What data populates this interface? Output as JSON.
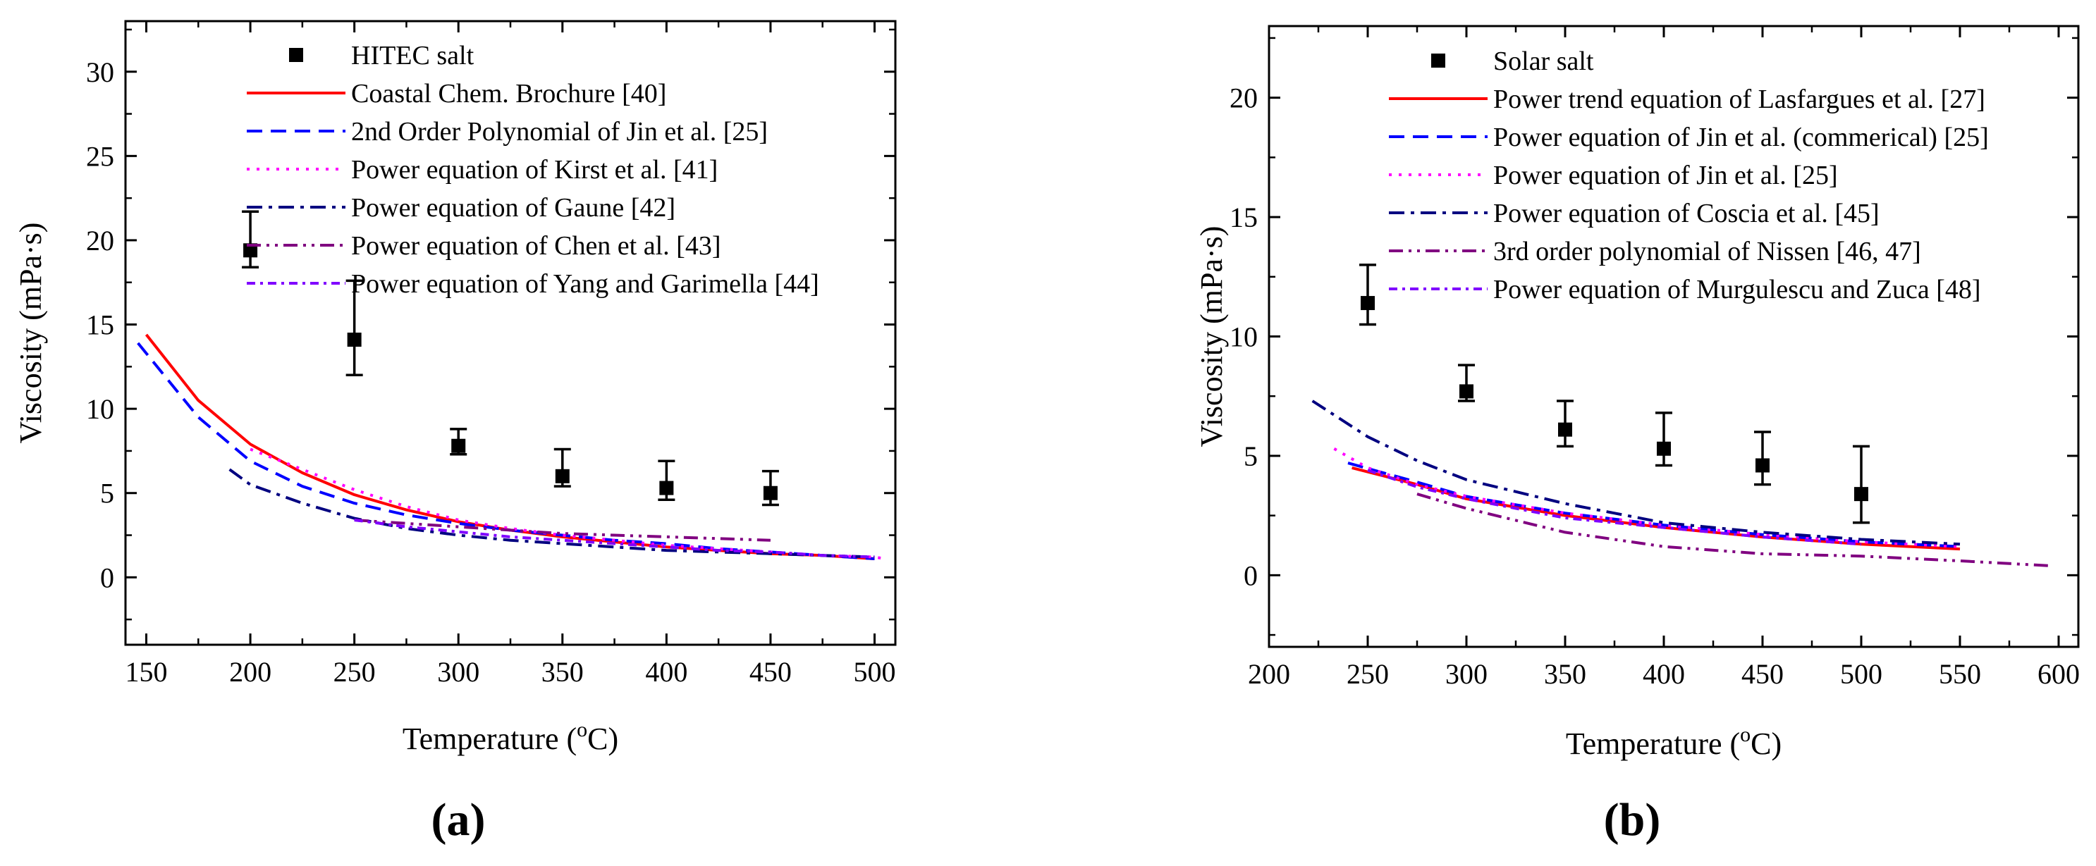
{
  "chart_data": [
    {
      "panel_label": "(a)",
      "type": "line",
      "xlabel": "Temperature (",
      "xlabel_sup": "o",
      "xlabel_suffix": "C)",
      "ylabel": "Viscosity (mPa·s)",
      "xlim": [
        140,
        510
      ],
      "ylim": [
        -4,
        33
      ],
      "xticks": [
        150,
        200,
        250,
        300,
        350,
        400,
        450,
        500
      ],
      "yticks": [
        0,
        5,
        10,
        15,
        20,
        25,
        30
      ],
      "legend_position": "top-center",
      "series": [
        {
          "name": "HITEC salt",
          "kind": "scatter",
          "color": "#000000",
          "x": [
            200,
            250,
            300,
            350,
            400,
            450
          ],
          "y": [
            19.4,
            14.1,
            7.8,
            6.0,
            5.3,
            5.0
          ],
          "err_low": [
            1.0,
            2.1,
            0.5,
            0.6,
            0.7,
            0.7
          ],
          "err_high": [
            2.3,
            3.5,
            1.0,
            1.6,
            1.6,
            1.3
          ]
        },
        {
          "name": "Coastal Chem. Brochure [40]",
          "kind": "line",
          "dash": "solid",
          "color": "#ff0000",
          "x": [
            150,
            175,
            200,
            225,
            250,
            275,
            300,
            325,
            350,
            375,
            400,
            425,
            450,
            475,
            500
          ],
          "y": [
            14.4,
            10.5,
            7.9,
            6.2,
            4.9,
            4.0,
            3.3,
            2.8,
            2.4,
            2.1,
            1.8,
            1.6,
            1.4,
            1.3,
            1.1
          ]
        },
        {
          "name": "2nd Order Polynomial of Jin et al. [25]",
          "kind": "line",
          "dash": "dash",
          "color": "#0000ff",
          "x": [
            146,
            175,
            200,
            225,
            250,
            275,
            300,
            325,
            350,
            375,
            400,
            425,
            450,
            475,
            500
          ],
          "y": [
            13.9,
            9.5,
            6.9,
            5.4,
            4.4,
            3.7,
            3.2,
            2.8,
            2.5,
            2.2,
            2.0,
            1.7,
            1.5,
            1.3,
            1.1
          ]
        },
        {
          "name": "Power equation of Kirst et al. [41]",
          "kind": "line",
          "dash": "dot",
          "color": "#ff00ff",
          "x": [
            200,
            225,
            250,
            275,
            300,
            325,
            350,
            375,
            400,
            425,
            450,
            475,
            500,
            505
          ],
          "y": [
            7.6,
            6.4,
            5.2,
            4.2,
            3.4,
            2.9,
            2.5,
            2.2,
            1.9,
            1.7,
            1.5,
            1.3,
            1.2,
            1.1
          ]
        },
        {
          "name": "Power equation of Gaune [42]",
          "kind": "line",
          "dash": "dashdot",
          "color": "#000080",
          "x": [
            190,
            200,
            225,
            250,
            275,
            300,
            325,
            350,
            375,
            400,
            425,
            450,
            475,
            500
          ],
          "y": [
            6.4,
            5.5,
            4.4,
            3.5,
            2.9,
            2.5,
            2.2,
            2.0,
            1.8,
            1.6,
            1.5,
            1.4,
            1.3,
            1.2
          ]
        },
        {
          "name": "Power equation of Chen et al. [43]",
          "kind": "line",
          "dash": "dashdotdot",
          "color": "#800080",
          "x": [
            250,
            275,
            300,
            325,
            350,
            375,
            400,
            425,
            450
          ],
          "y": [
            3.4,
            3.2,
            3.0,
            2.8,
            2.6,
            2.5,
            2.4,
            2.3,
            2.2
          ]
        },
        {
          "name": "Power equation of Yang and Garimella [44]",
          "kind": "line",
          "dash": "dashdot-short",
          "color": "#8000ff",
          "x": [
            250,
            275,
            300,
            325,
            350,
            375,
            400,
            425,
            450,
            475,
            500
          ],
          "y": [
            3.4,
            3.0,
            2.7,
            2.4,
            2.2,
            2.0,
            1.8,
            1.6,
            1.5,
            1.3,
            1.2
          ]
        }
      ]
    },
    {
      "panel_label": "(b)",
      "type": "line",
      "xlabel": "Temperature (",
      "xlabel_sup": "o",
      "xlabel_suffix": "C)",
      "ylabel": "Viscosity (mPa·s)",
      "xlim": [
        200,
        610
      ],
      "ylim": [
        -3,
        23
      ],
      "xticks": [
        200,
        250,
        300,
        350,
        400,
        450,
        500,
        550,
        600
      ],
      "yticks": [
        0,
        5,
        10,
        15,
        20
      ],
      "legend_position": "top-center",
      "series": [
        {
          "name": "Solar salt",
          "kind": "scatter",
          "color": "#000000",
          "x": [
            250,
            300,
            350,
            400,
            450,
            500
          ],
          "y": [
            11.4,
            7.7,
            6.1,
            5.3,
            4.6,
            3.4
          ],
          "err_low": [
            0.9,
            0.4,
            0.7,
            0.7,
            0.8,
            1.2
          ],
          "err_high": [
            1.6,
            1.1,
            1.2,
            1.5,
            1.4,
            2.0
          ]
        },
        {
          "name": "Power trend equation of Lasfargues et al. [27]",
          "kind": "line",
          "dash": "solid",
          "color": "#ff0000",
          "x": [
            242,
            275,
            300,
            350,
            400,
            450,
            500,
            550
          ],
          "y": [
            4.5,
            3.8,
            3.2,
            2.5,
            2.0,
            1.6,
            1.3,
            1.1
          ]
        },
        {
          "name": "Power equation of Jin et al. (commerical) [25]",
          "kind": "line",
          "dash": "dash",
          "color": "#0000ff",
          "x": [
            240,
            275,
            300,
            350,
            400,
            450,
            500,
            550
          ],
          "y": [
            4.7,
            3.9,
            3.3,
            2.6,
            2.1,
            1.7,
            1.4,
            1.2
          ]
        },
        {
          "name": "Power equation of Jin et al. [25]",
          "kind": "line",
          "dash": "dot",
          "color": "#ff00ff",
          "x": [
            233,
            250,
            275,
            300,
            350,
            400,
            450,
            500,
            550
          ],
          "y": [
            5.3,
            4.5,
            3.8,
            3.3,
            2.6,
            2.1,
            1.7,
            1.4,
            1.2
          ]
        },
        {
          "name": "Power equation of Coscia et al. [45]",
          "kind": "line",
          "dash": "dashdot",
          "color": "#000080",
          "x": [
            222,
            250,
            275,
            300,
            350,
            400,
            450,
            500,
            550
          ],
          "y": [
            7.3,
            5.8,
            4.8,
            4.0,
            3.0,
            2.2,
            1.8,
            1.5,
            1.3
          ]
        },
        {
          "name": "3rd order polynomial of Nissen [46, 47]",
          "kind": "line",
          "dash": "dashdotdot",
          "color": "#800080",
          "x": [
            275,
            300,
            350,
            400,
            450,
            500,
            550,
            595
          ],
          "y": [
            3.4,
            2.8,
            1.8,
            1.2,
            0.9,
            0.8,
            0.6,
            0.4
          ]
        },
        {
          "name": "Power equation of Murgulescu and Zuca [48]",
          "kind": "line",
          "dash": "dashdot-short",
          "color": "#8000ff",
          "x": [
            250,
            275,
            300,
            350,
            400,
            450,
            500
          ],
          "y": [
            4.4,
            3.7,
            3.2,
            2.4,
            2.0,
            1.6,
            1.3
          ]
        }
      ]
    }
  ]
}
